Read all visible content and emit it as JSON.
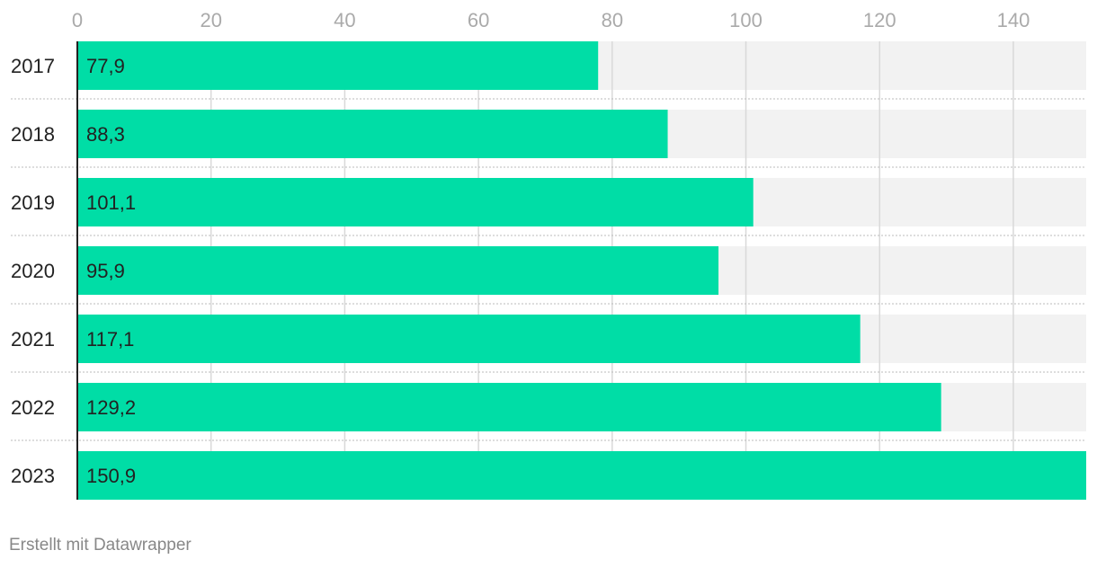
{
  "chart_data": {
    "type": "bar",
    "orientation": "horizontal",
    "categories": [
      "2017",
      "2018",
      "2019",
      "2020",
      "2021",
      "2022",
      "2023"
    ],
    "values": [
      77.9,
      88.3,
      101.1,
      95.9,
      117.1,
      129.2,
      150.9
    ],
    "value_labels": [
      "77,9",
      "88,3",
      "101,1",
      "95,9",
      "117,1",
      "129,2",
      "150,9"
    ],
    "xticks": [
      0,
      20,
      40,
      60,
      80,
      100,
      120,
      140
    ],
    "xlim": [
      0,
      150.9
    ],
    "title": "",
    "xlabel": "",
    "ylabel": "",
    "grid": true,
    "legend": "none",
    "colors": {
      "bar": "#00dda6",
      "track": "#f2f2f2",
      "grid": "#d9d9d9",
      "axis": "#222222",
      "separator": "#bbbbbb"
    }
  },
  "footer": {
    "credit": "Erstellt mit Datawrapper"
  }
}
